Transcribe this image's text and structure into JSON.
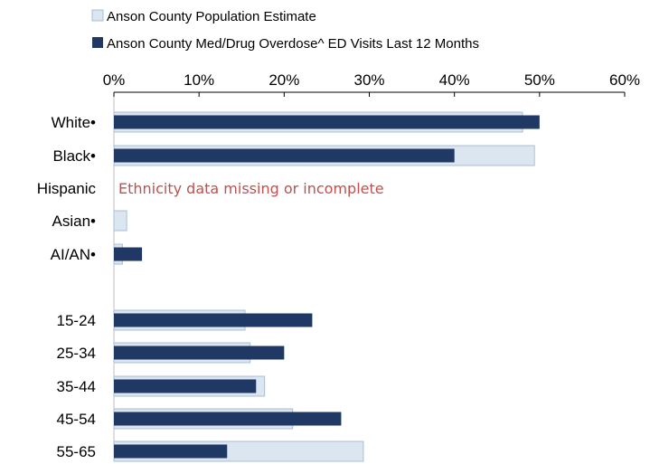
{
  "chart_data": {
    "type": "bar",
    "orientation": "horizontal",
    "xlim": [
      0,
      60
    ],
    "x_tick_labels": [
      "0%",
      "10%",
      "20%",
      "30%",
      "40%",
      "50%",
      "60%"
    ],
    "x_ticks": [
      0,
      10,
      20,
      30,
      40,
      50,
      60
    ],
    "x_axis_position": "top",
    "grid": false,
    "legend_position": "top-left",
    "categories": [
      "White•",
      "Black•",
      "Hispanic",
      "Asian•",
      "AI/AN•",
      "",
      "15-24",
      "25-34",
      "35-44",
      "45-54",
      "55-65"
    ],
    "series": [
      {
        "name": "Anson County Population Estimate",
        "color": "#dce6f0",
        "edge_color": "#a9bfd3",
        "values": [
          48,
          49.4,
          null,
          1.5,
          1,
          null,
          15.4,
          16,
          17.7,
          21,
          29.3
        ]
      },
      {
        "name": "Anson County Med/Drug Overdose^ ED Visits Last 12 Months",
        "color": "#1f3864",
        "values": [
          50,
          40,
          null,
          0,
          3.3,
          null,
          23.3,
          20,
          16.7,
          26.7,
          13.3
        ]
      }
    ],
    "annotations": [
      {
        "text": "Ethnicity data missing or incomplete",
        "category": "Hispanic",
        "color": "#c0504d"
      }
    ]
  }
}
